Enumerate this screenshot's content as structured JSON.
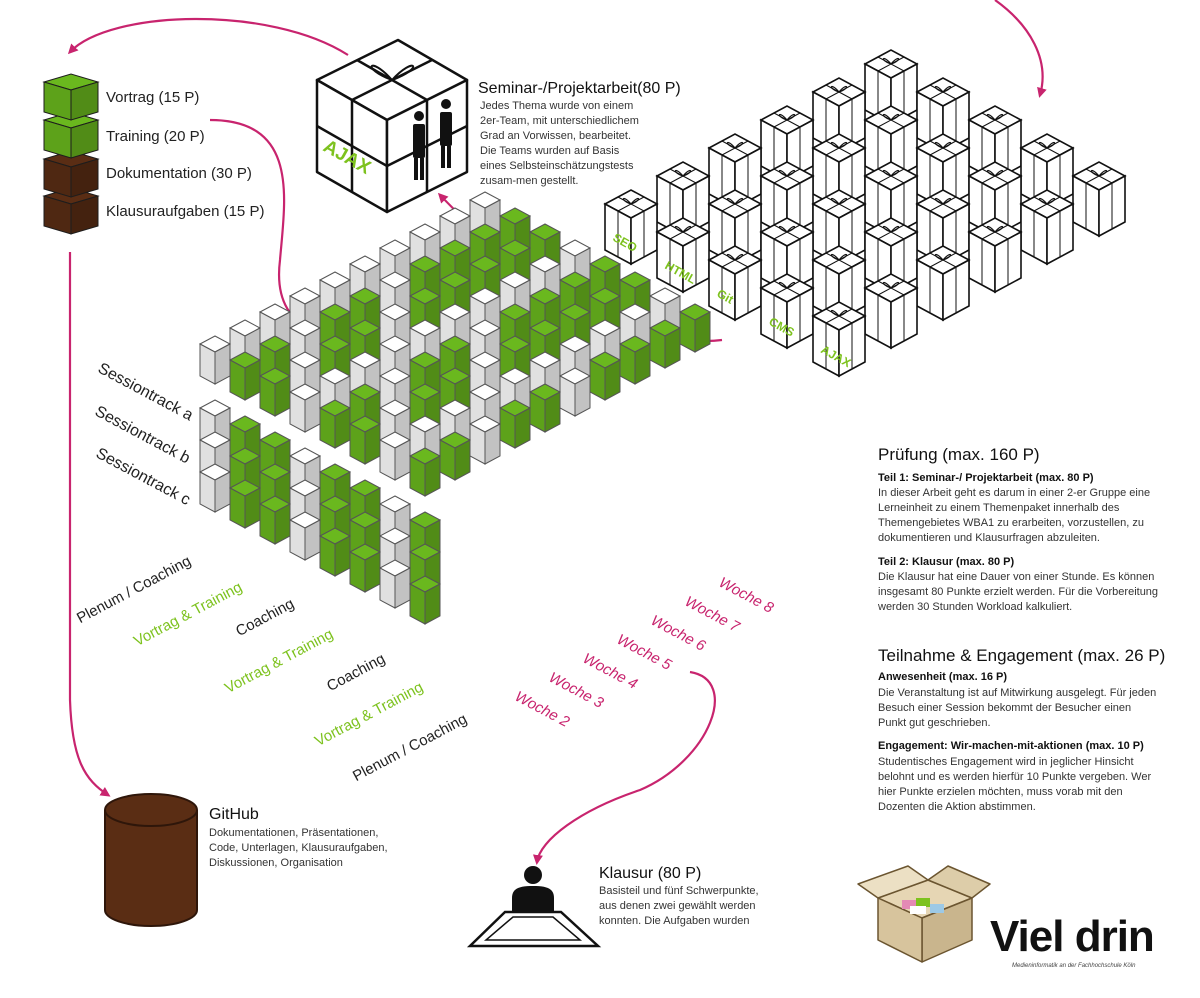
{
  "legend": {
    "items": [
      {
        "label": "Vortrag (15 P)",
        "color": "#6ab81e"
      },
      {
        "label": "Training (20 P)",
        "color": "#6ab81e"
      },
      {
        "label": "Dokumentation (30 P)",
        "color": "#5a2d14"
      },
      {
        "label": "Klausuraufgaben (15 P)",
        "color": "#5a2d14"
      }
    ]
  },
  "seminar": {
    "title": "Seminar-/Projektarbeit(80 P)",
    "text": "Jedes Thema wurde von einem 2er-Team, mit unterschiedlichem Grad an Vorwissen, bearbeitet. Die Teams wurden auf Basis eines Selbsteinschätzungstests zusam-men gestellt.",
    "box_label": "AJAX"
  },
  "topic_boxes": [
    "SEO",
    "HTML",
    "Git",
    "CMS",
    "AJAX"
  ],
  "tracks": [
    "Sessiontrack a",
    "Sessiontrack b",
    "Sessiontrack c"
  ],
  "session_types": [
    {
      "label": "Plenum / Coaching",
      "color": "#222222"
    },
    {
      "label": "Vortrag & Training",
      "color": "#7dc21e"
    },
    {
      "label": "Coaching",
      "color": "#222222"
    },
    {
      "label": "Vortrag & Training",
      "color": "#7dc21e"
    },
    {
      "label": "Coaching",
      "color": "#222222"
    },
    {
      "label": "Vortrag & Training",
      "color": "#7dc21e"
    },
    {
      "label": "Plenum / Coaching",
      "color": "#222222"
    }
  ],
  "weeks": [
    "Woche 2",
    "Woche 3",
    "Woche 4",
    "Woche 5",
    "Woche 6",
    "Woche 7",
    "Woche 8"
  ],
  "exam": {
    "title": "Prüfung (max. 160 P)",
    "part1_title": "Teil 1: Seminar-/ Projektarbeit (max. 80 P)",
    "part1_text": "In dieser Arbeit geht es darum in einer 2-er Gruppe eine Lerneinheit zu einem Themenpaket innerhalb des Themengebietes WBA1 zu erarbeiten, vorzustellen, zu dokumentieren und Klausurfragen abzuleiten.",
    "part2_title": "Teil 2: Klausur (max. 80 P)",
    "part2_text": "Die Klausur hat eine Dauer von einer Stunde. Es können insgesamt 80 Punkte erzielt werden. Für die Vorbereitung werden 30 Stunden Workload kalkuliert."
  },
  "participation": {
    "title": "Teilnahme & Engagement (max. 26 P)",
    "attendance_title": "Anwesenheit (max. 16 P)",
    "attendance_text": "Die Veranstaltung ist auf Mitwirkung ausgelegt. Für jeden Besuch einer Session bekommt der Besucher einen Punkt gut geschrieben.",
    "engagement_title": "Engagement: Wir-machen-mit-aktionen (max. 10 P)",
    "engagement_text": "Studentisches Engagement wird in jeglicher Hinsicht belohnt und es werden hierfür 10 Punkte vergeben. Wer hier Punkte erzielen möchten, muss vorab mit den Dozenten die Aktion abstimmen."
  },
  "github": {
    "title": "GitHub",
    "text": "Dokumentationen, Präsentationen, Code, Unterlagen, Klausuraufgaben, Diskussionen, Organisation",
    "color": "#5a2d14"
  },
  "klausur": {
    "title": "Klausur (80 P)",
    "text": "Basisteil und fünf Schwerpunkte, aus denen zwei gewählt werden konnten. Die Aufgaben wurden"
  },
  "logo": {
    "title": "Viel drin",
    "subtitle": "Medieninformatik an der Fachhochschule Köln"
  },
  "colors": {
    "green": "#6ab81e",
    "brown": "#5a2d14",
    "arrow": "#c8246e",
    "week": "#c8246e"
  }
}
